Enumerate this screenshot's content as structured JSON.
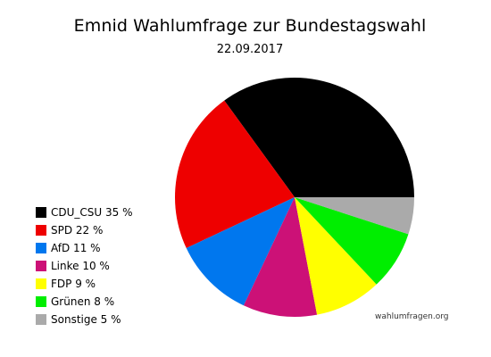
{
  "chart_data": {
    "type": "pie",
    "title": "Emnid Wahlumfrage zur Bundestagswahl",
    "subtitle": "22.09.2017",
    "slices": [
      {
        "label": "CDU_CSU 35 %",
        "value": 35,
        "color": "#000000"
      },
      {
        "label": "SPD 22 %",
        "value": 22,
        "color": "#ee0000"
      },
      {
        "label": "AfD 11 %",
        "value": 11,
        "color": "#0077ee"
      },
      {
        "label": "Linke 10 %",
        "value": 10,
        "color": "#cc1177"
      },
      {
        "label": "FDP 9 %",
        "value": 9,
        "color": "#ffff00"
      },
      {
        "label": "Grünen 8 %",
        "value": 8,
        "color": "#00ee00"
      },
      {
        "label": "Sonstige 5 %",
        "value": 5,
        "color": "#aaaaaa"
      }
    ],
    "legend_position": "left",
    "source": "wahlumfragen.org"
  }
}
